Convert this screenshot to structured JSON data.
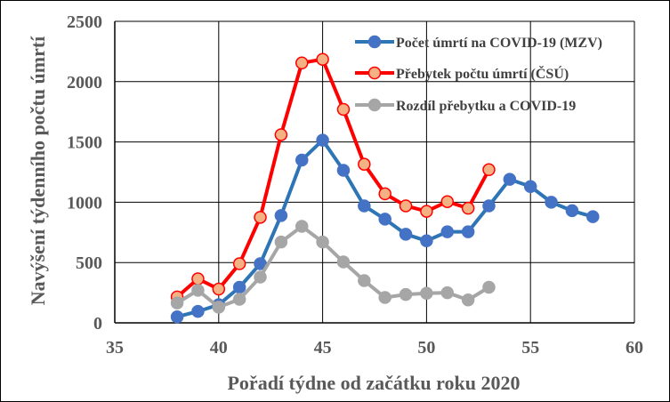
{
  "chart_data": {
    "type": "line",
    "xlabel": "Pořadí týdne od začátku roku 2020",
    "ylabel": "Navýšení týdenního počtu úmrtí",
    "xlim": [
      35,
      60
    ],
    "ylim": [
      0,
      2500
    ],
    "xticks": [
      35,
      40,
      45,
      50,
      55,
      60
    ],
    "yticks": [
      0,
      500,
      1000,
      1500,
      2000,
      2500
    ],
    "grid": true,
    "legend_position": "top-right",
    "series": [
      {
        "name": "Počet úmrtí na COVID-19 (MZV)",
        "color": "#2E75B6",
        "marker_fill": "#4472C4",
        "marker_edge": "#4472C4",
        "x": [
          38,
          39,
          40,
          41,
          42,
          43,
          44,
          45,
          46,
          47,
          48,
          49,
          50,
          51,
          52,
          53,
          54,
          55,
          56,
          57,
          58
        ],
        "y": [
          50,
          95,
          150,
          295,
          490,
          890,
          1350,
          1515,
          1265,
          970,
          860,
          735,
          680,
          755,
          755,
          970,
          1190,
          1130,
          1000,
          930,
          880
        ]
      },
      {
        "name": "Přebytek počtu úmrtí (ČSÚ)",
        "color": "#FF0000",
        "marker_fill": "#F4B183",
        "marker_edge": "#FF0000",
        "x": [
          38,
          39,
          40,
          41,
          42,
          43,
          44,
          45,
          46,
          47,
          48,
          49,
          50,
          51,
          52,
          53
        ],
        "y": [
          215,
          365,
          280,
          490,
          875,
          1560,
          2155,
          2185,
          1770,
          1315,
          1070,
          970,
          925,
          1005,
          950,
          1270
        ]
      },
      {
        "name": "Rozdíl přebytku a COVID-19",
        "color": "#A6A6A6",
        "marker_fill": "#A6A6A6",
        "marker_edge": "#A6A6A6",
        "x": [
          38,
          39,
          40,
          41,
          42,
          43,
          44,
          45,
          46,
          47,
          48,
          49,
          50,
          51,
          52,
          53
        ],
        "y": [
          165,
          270,
          130,
          195,
          380,
          670,
          800,
          670,
          505,
          350,
          210,
          235,
          245,
          250,
          190,
          295
        ]
      }
    ]
  }
}
